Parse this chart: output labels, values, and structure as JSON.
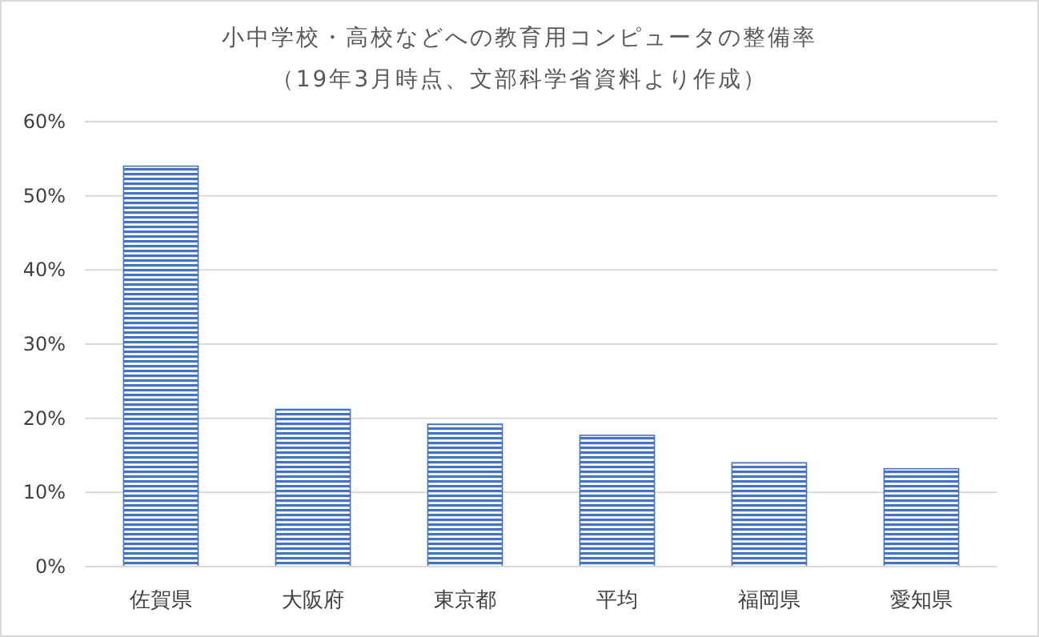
{
  "chart_data": {
    "type": "bar",
    "title": "小中学校・高校などへの教育用コンピュータの整備率",
    "subtitle": "（19年3月時点、文部科学省資料より作成）",
    "categories": [
      "佐賀県",
      "大阪府",
      "東京都",
      "平均",
      "福岡県",
      "愛知県"
    ],
    "values": [
      0.54,
      0.212,
      0.192,
      0.177,
      0.14,
      0.132
    ],
    "color": "#4472c4",
    "ylim": [
      0,
      0.6
    ],
    "yticks": [
      {
        "value": 0,
        "label": "0%"
      },
      {
        "value": 0.1,
        "label": "10%"
      },
      {
        "value": 0.2,
        "label": "20%"
      },
      {
        "value": 0.3,
        "label": "30%"
      },
      {
        "value": 0.4,
        "label": "40%"
      },
      {
        "value": 0.5,
        "label": "50%"
      },
      {
        "value": 0.6,
        "label": "60%"
      }
    ],
    "grid": "y"
  }
}
